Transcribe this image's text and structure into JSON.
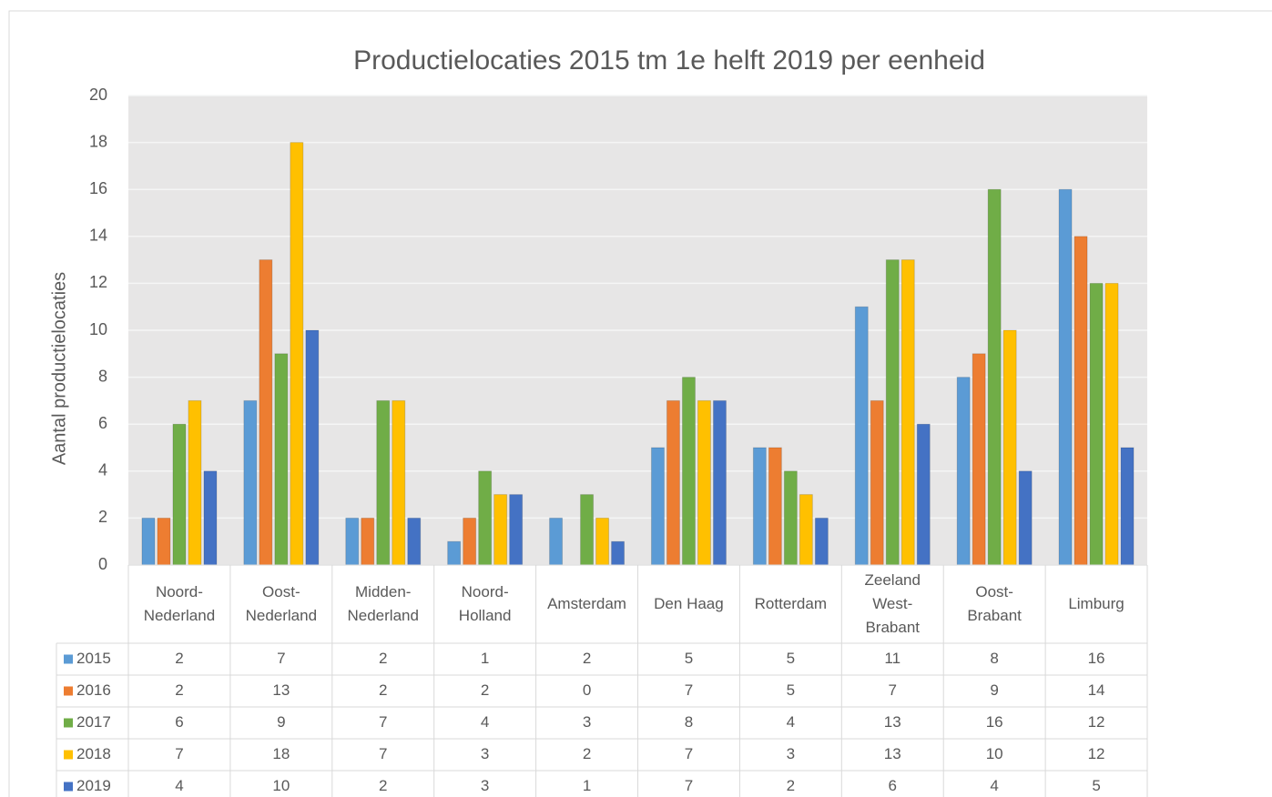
{
  "chart_data": {
    "type": "bar",
    "title": "Productielocaties 2015 tm 1e helft 2019 per eenheid",
    "y_label": "Aantal productielocaties",
    "categories": [
      "Noord-Nederland",
      "Oost-Nederland",
      "Midden-Nederland",
      "Noord-Holland",
      "Amsterdam",
      "Den Haag",
      "Rotterdam",
      "Zeeland West-Brabant",
      "Oost-Brabant",
      "Limburg"
    ],
    "series": [
      {
        "name": "2015",
        "color": "#5b9bd5",
        "values": [
          2,
          7,
          2,
          1,
          2,
          5,
          5,
          11,
          8,
          16
        ]
      },
      {
        "name": "2016",
        "color": "#ed7d31",
        "values": [
          2,
          13,
          2,
          2,
          0,
          7,
          5,
          7,
          9,
          14
        ]
      },
      {
        "name": "2017",
        "color": "#70ad47",
        "values": [
          6,
          9,
          7,
          4,
          3,
          8,
          4,
          13,
          16,
          12
        ]
      },
      {
        "name": "2018",
        "color": "#ffc000",
        "values": [
          7,
          18,
          7,
          3,
          2,
          7,
          3,
          13,
          10,
          12
        ]
      },
      {
        "name": "2019",
        "color": "#4472c4",
        "values": [
          4,
          10,
          2,
          3,
          1,
          7,
          2,
          6,
          4,
          5
        ]
      }
    ],
    "ylim": [
      0,
      20
    ],
    "yticks": [
      0,
      2,
      4,
      6,
      8,
      10,
      12,
      14,
      16,
      18,
      20
    ],
    "grid": true,
    "data_table": true
  }
}
